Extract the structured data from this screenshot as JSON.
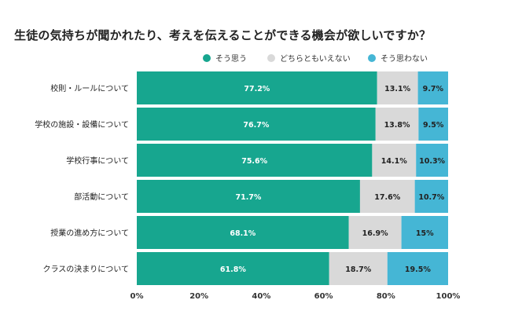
{
  "chart_data": {
    "type": "bar",
    "orientation": "horizontal",
    "stacked": true,
    "title": "生徒の気持ちが聞かれたり、考えを伝えることができる機会が欲しいですか？",
    "categories": [
      "校則・ルールについて",
      "学校の施設・設備について",
      "学校行事について",
      "部活動について",
      "授業の進め方について",
      "クラスの決まりについて"
    ],
    "series": [
      {
        "name": "そう思う",
        "color": "#17a68f",
        "values": [
          77.2,
          76.7,
          75.6,
          71.7,
          68.1,
          61.8
        ],
        "labels": [
          "77.2%",
          "76.7%",
          "75.6%",
          "71.7%",
          "68.1%",
          "61.8%"
        ]
      },
      {
        "name": "どちらともいえない",
        "color": "#d9d9d9",
        "values": [
          13.1,
          13.8,
          14.1,
          17.6,
          16.9,
          18.7
        ],
        "labels": [
          "13.1%",
          "13.8%",
          "14.1%",
          "17.6%",
          "16.9%",
          "18.7%"
        ]
      },
      {
        "name": "そう思わない",
        "color": "#45b6d5",
        "values": [
          9.7,
          9.5,
          10.3,
          10.7,
          15,
          19.5
        ],
        "labels": [
          "9.7%",
          "9.5%",
          "10.3%",
          "10.7%",
          "15%",
          "19.5%"
        ]
      }
    ],
    "xlim": [
      0,
      100
    ],
    "xticks": [
      "0%",
      "20%",
      "40%",
      "60%",
      "80%",
      "100%"
    ],
    "legend_position": "top-center",
    "grid": false
  }
}
